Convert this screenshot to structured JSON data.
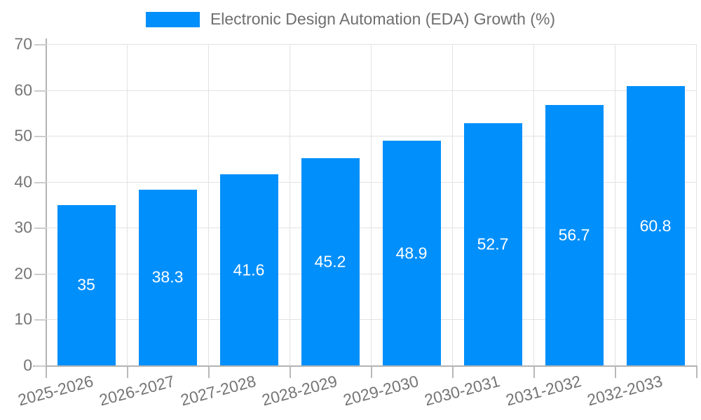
{
  "chart_data": {
    "type": "bar",
    "title": "Electronic Design Automation (EDA) Growth (%)",
    "series": [
      {
        "name": "Electronic Design Automation (EDA) Growth (%)",
        "values": [
          35,
          38.3,
          41.6,
          45.2,
          48.9,
          52.7,
          56.7,
          60.8
        ],
        "data_labels": [
          "35",
          "38.3",
          "41.6",
          "45.2",
          "48.9",
          "52.7",
          "56.7",
          "60.8"
        ]
      }
    ],
    "categories": [
      "2025-2026",
      "2026-2027",
      "2027-2028",
      "2028-2029",
      "2029-2030",
      "2030-2031",
      "2031-2032",
      "2032-2033"
    ],
    "xlabel": "",
    "ylabel": "",
    "ylim": [
      0,
      70
    ],
    "y_ticks": [
      0,
      10,
      20,
      30,
      40,
      50,
      60,
      70
    ],
    "y_tick_labels": [
      "0",
      "10",
      "20",
      "30",
      "40",
      "50",
      "60",
      "70"
    ],
    "grid": true,
    "legend_position": "top",
    "x_label_rotation_deg": -15
  },
  "colors": {
    "bar": "#008FFB",
    "value_label": "#ffffff",
    "axis_text": "#757575",
    "legend_text": "#6f6f6f",
    "gridline": "#e2e2e2",
    "axis_line": "#b3b3b3",
    "background": "#ffffff"
  }
}
